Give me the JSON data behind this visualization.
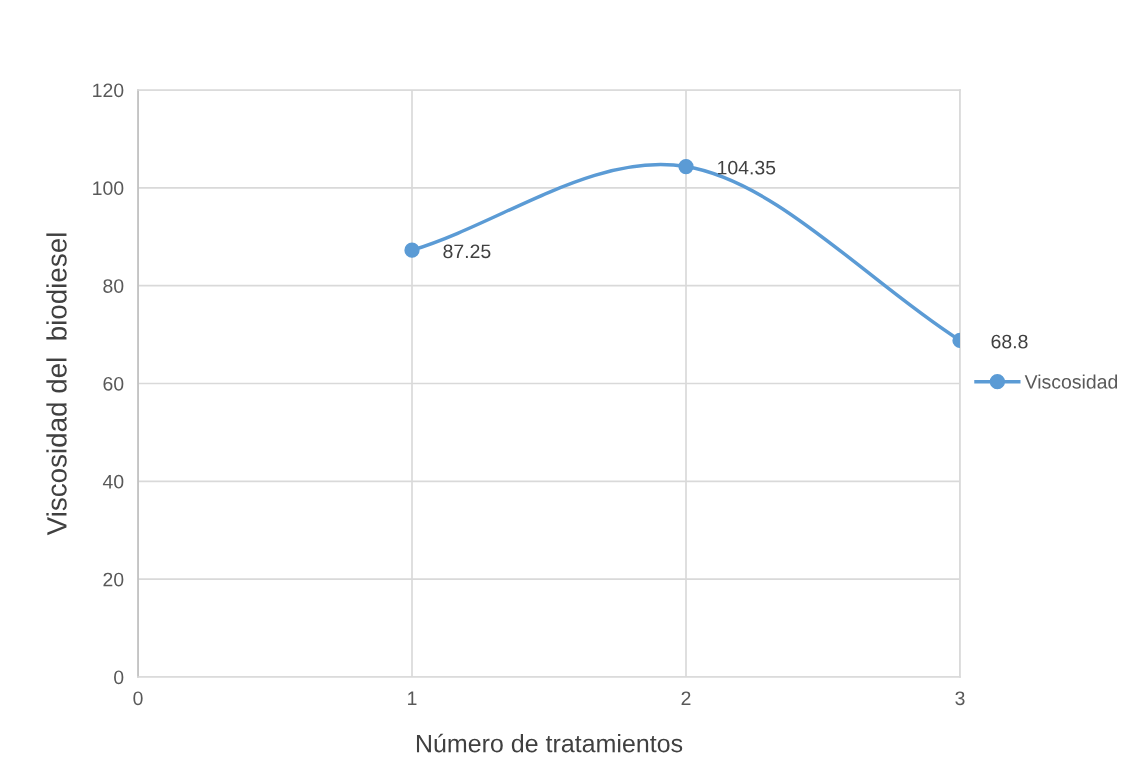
{
  "chart_data": {
    "type": "line",
    "xlabel": "Número de tratamientos",
    "ylabel": "Viscosidad del  biodiesel",
    "x": [
      1,
      2,
      3
    ],
    "series": [
      {
        "name": "Viscosidad",
        "color": "#5b9bd5",
        "values": [
          87.25,
          104.35,
          68.8
        ]
      }
    ],
    "xlim": [
      0,
      3
    ],
    "xticks": [
      0,
      1,
      2,
      3
    ],
    "ylim": [
      0,
      120
    ],
    "yticks": [
      0,
      20,
      40,
      60,
      80,
      100,
      120
    ],
    "grid": true,
    "legend": "right",
    "marker": "circle",
    "line_style": "solid",
    "data_labels": true
  }
}
